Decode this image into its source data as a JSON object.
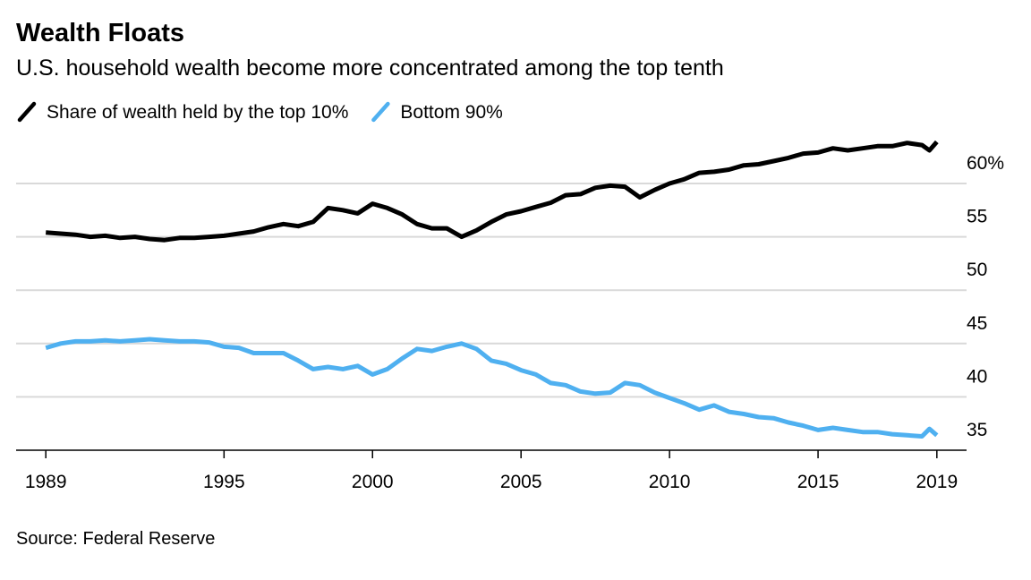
{
  "chart_data": {
    "type": "line",
    "title": "Wealth Floats",
    "subtitle": "U.S. household wealth become more concentrated among the top tenth",
    "source": "Source: Federal Reserve",
    "x": [
      1989,
      1989.5,
      1990,
      1990.5,
      1991,
      1991.5,
      1992,
      1992.5,
      1993,
      1993.5,
      1994,
      1994.5,
      1995,
      1995.5,
      1996,
      1996.5,
      1997,
      1997.5,
      1998,
      1998.5,
      1999,
      1999.5,
      2000,
      2000.5,
      2001,
      2001.5,
      2002,
      2002.5,
      2003,
      2003.5,
      2004,
      2004.5,
      2005,
      2005.5,
      2006,
      2006.5,
      2007,
      2007.5,
      2008,
      2008.5,
      2009,
      2009.5,
      2010,
      2010.5,
      2011,
      2011.5,
      2012,
      2012.5,
      2013,
      2013.5,
      2014,
      2014.5,
      2015,
      2015.5,
      2016,
      2016.5,
      2017,
      2017.5,
      2018,
      2018.5,
      2018.75,
      2019
    ],
    "series": [
      {
        "name": "Share of wealth held by the top 10%",
        "color": "#000000",
        "values": [
          55.4,
          55.3,
          55.2,
          55.0,
          55.1,
          54.9,
          55.0,
          54.8,
          54.7,
          54.9,
          54.9,
          55.0,
          55.1,
          55.3,
          55.5,
          55.9,
          56.2,
          56.0,
          56.4,
          57.7,
          57.5,
          57.2,
          58.1,
          57.7,
          57.1,
          56.2,
          55.8,
          55.8,
          55.0,
          55.6,
          56.4,
          57.1,
          57.4,
          57.8,
          58.2,
          58.9,
          59.0,
          59.6,
          59.8,
          59.7,
          58.7,
          59.4,
          60.0,
          60.4,
          61.0,
          61.1,
          61.3,
          61.7,
          61.8,
          62.1,
          62.4,
          62.8,
          62.9,
          63.3,
          63.1,
          63.3,
          63.5,
          63.5,
          63.8,
          63.6,
          63.1,
          63.9
        ]
      },
      {
        "name": "Bottom 90%",
        "color": "#4fb0f0",
        "values": [
          44.6,
          45.0,
          45.2,
          45.2,
          45.3,
          45.2,
          45.3,
          45.4,
          45.3,
          45.2,
          45.2,
          45.1,
          44.7,
          44.6,
          44.1,
          44.1,
          44.1,
          43.4,
          42.6,
          42.8,
          42.6,
          42.9,
          42.1,
          42.6,
          43.6,
          44.5,
          44.3,
          44.7,
          45.0,
          44.5,
          43.4,
          43.1,
          42.5,
          42.1,
          41.3,
          41.1,
          40.5,
          40.3,
          40.4,
          41.3,
          41.1,
          40.4,
          39.9,
          39.4,
          38.8,
          39.2,
          38.6,
          38.4,
          38.1,
          38.0,
          37.6,
          37.3,
          36.9,
          37.1,
          36.9,
          36.7,
          36.7,
          36.5,
          36.4,
          36.3,
          37.0,
          36.4
        ]
      }
    ],
    "xlim": [
      1988,
      2020
    ],
    "xticks": [
      1989,
      1995,
      2000,
      2005,
      2010,
      2015,
      2019
    ],
    "ylim": [
      35,
      65
    ],
    "yticks": [
      35,
      40,
      45,
      50,
      55,
      {
        "value": 60,
        "label": "60%"
      }
    ],
    "grid": true
  }
}
